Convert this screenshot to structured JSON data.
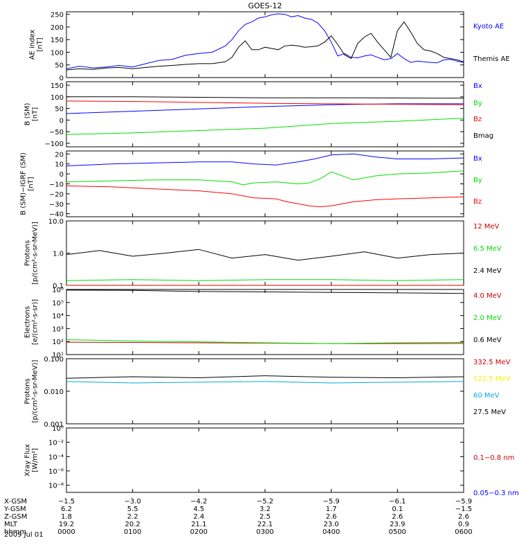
{
  "title": "GOES-12",
  "chart_data": [
    {
      "type": "line",
      "ylabel": "AE index\n[nT]",
      "ylim": [
        0,
        260
      ],
      "yticks": [
        0,
        50,
        100,
        150,
        200,
        250
      ],
      "ytick_labels": [
        "0",
        "50",
        "100",
        "150",
        "200",
        "250"
      ],
      "legend_placement": "right",
      "series": [
        {
          "name": "Kyoto AE",
          "color": "#0000ff",
          "x": [
            0,
            12,
            24,
            36,
            48,
            60,
            72,
            84,
            96,
            108,
            120,
            132,
            144,
            150,
            156,
            162,
            168,
            174,
            180,
            186,
            192,
            198,
            204,
            210,
            216,
            222,
            228,
            234,
            240,
            246,
            252,
            258,
            264,
            270,
            276,
            282,
            288,
            294,
            300,
            306,
            312,
            318,
            324,
            330,
            336,
            342,
            348,
            354,
            360
          ],
          "y": [
            35,
            45,
            38,
            42,
            48,
            42,
            55,
            68,
            72,
            88,
            95,
            100,
            125,
            150,
            185,
            210,
            220,
            235,
            240,
            248,
            252,
            250,
            240,
            245,
            235,
            230,
            215,
            185,
            140,
            85,
            95,
            80,
            78,
            85,
            90,
            80,
            70,
            75,
            95,
            75,
            60,
            65,
            62,
            60,
            58,
            70,
            72,
            65,
            60
          ]
        },
        {
          "name": "Themis AE",
          "color": "#000000",
          "x": [
            0,
            12,
            24,
            36,
            48,
            60,
            72,
            84,
            96,
            108,
            120,
            132,
            144,
            150,
            156,
            162,
            168,
            174,
            180,
            186,
            192,
            198,
            204,
            210,
            216,
            222,
            228,
            234,
            240,
            246,
            252,
            258,
            264,
            270,
            276,
            282,
            288,
            294,
            300,
            306,
            312,
            318,
            324,
            330,
            336,
            342,
            348,
            354,
            360
          ],
          "y": [
            30,
            35,
            32,
            38,
            40,
            35,
            40,
            45,
            48,
            52,
            55,
            55,
            62,
            80,
            120,
            145,
            110,
            110,
            120,
            115,
            110,
            125,
            128,
            125,
            120,
            122,
            125,
            140,
            165,
            130,
            90,
            75,
            135,
            160,
            175,
            140,
            110,
            80,
            185,
            220,
            180,
            135,
            110,
            105,
            95,
            80,
            75,
            70,
            62
          ]
        }
      ]
    },
    {
      "type": "line",
      "ylabel": "B (SM)\n[nT]",
      "ylim": [
        -115,
        165
      ],
      "yticks": [
        -100,
        -50,
        0,
        50,
        100,
        150
      ],
      "ytick_labels": [
        "−100",
        "−50",
        "0",
        "50",
        "100",
        "150"
      ],
      "legend_placement": "right",
      "series": [
        {
          "name": "Bx",
          "color": "#0000ff",
          "x": [
            0,
            60,
            120,
            180,
            240,
            300,
            360
          ],
          "y": [
            28,
            38,
            48,
            58,
            66,
            70,
            70
          ]
        },
        {
          "name": "By",
          "color": "#00dd00",
          "x": [
            0,
            60,
            120,
            180,
            240,
            270,
            300,
            360
          ],
          "y": [
            -62,
            -55,
            -45,
            -35,
            -15,
            -10,
            -5,
            8
          ]
        },
        {
          "name": "Bz",
          "color": "#ff0000",
          "x": [
            0,
            60,
            120,
            180,
            240,
            300,
            360
          ],
          "y": [
            82,
            80,
            76,
            72,
            70,
            68,
            66
          ]
        },
        {
          "name": "Bmag",
          "color": "#000000",
          "x": [
            0,
            60,
            120,
            180,
            240,
            300,
            360
          ],
          "y": [
            100,
            100,
            98,
            96,
            96,
            95,
            94
          ]
        }
      ]
    },
    {
      "type": "line",
      "ylabel": "B (SM)−IGRF (SM)\n[nT]",
      "ylim": [
        -43,
        23
      ],
      "yticks": [
        -40,
        -30,
        -20,
        -10,
        0,
        10,
        20
      ],
      "ytick_labels": [
        "−40",
        "−30",
        "−20",
        "−10",
        "0",
        "10",
        "20"
      ],
      "legend_placement": "right",
      "series": [
        {
          "name": "Bx",
          "color": "#0000ff",
          "x": [
            0,
            40,
            80,
            120,
            150,
            170,
            190,
            210,
            225,
            240,
            260,
            280,
            300,
            330,
            360
          ],
          "y": [
            8,
            10,
            11,
            12,
            12,
            10,
            9,
            12,
            15,
            19,
            20,
            17,
            15,
            15,
            16
          ]
        },
        {
          "name": "By",
          "color": "#00dd00",
          "x": [
            0,
            40,
            80,
            120,
            150,
            160,
            170,
            190,
            210,
            220,
            230,
            240,
            260,
            280,
            300,
            330,
            360
          ],
          "y": [
            -8,
            -7,
            -6,
            -6,
            -8,
            -11,
            -9,
            -8,
            -10,
            -9,
            -5,
            2,
            -6,
            -2,
            0,
            1,
            3
          ]
        },
        {
          "name": "Bz",
          "color": "#ff0000",
          "x": [
            0,
            40,
            80,
            120,
            150,
            170,
            190,
            200,
            210,
            220,
            230,
            240,
            260,
            280,
            300,
            330,
            360
          ],
          "y": [
            -12,
            -13,
            -15,
            -17,
            -20,
            -24,
            -25,
            -28,
            -30,
            -32,
            -33,
            -32,
            -28,
            -26,
            -25,
            -24,
            -23
          ]
        }
      ]
    },
    {
      "type": "line",
      "ylabel": "Protons\n[p/(cm²-s-sr-MeV)]",
      "scale": "log",
      "ylim": [
        0.1,
        10
      ],
      "yticks": [
        0.1,
        1,
        10
      ],
      "ytick_labels": [
        "0.1",
        "1.0",
        "10.0"
      ],
      "legend_placement": "right",
      "series": [
        {
          "name": "12 MeV",
          "color": "#cc0000",
          "x": [
            0,
            60,
            120,
            180,
            240,
            300,
            360
          ],
          "y": [
            0.1,
            0.1,
            0.1,
            0.1,
            0.1,
            0.1,
            0.1
          ]
        },
        {
          "name": "6.5 MeV",
          "color": "#00dd00",
          "x": [
            0,
            60,
            120,
            180,
            240,
            300,
            360
          ],
          "y": [
            0.14,
            0.15,
            0.14,
            0.15,
            0.15,
            0.14,
            0.15
          ]
        },
        {
          "name": "2.4 MeV",
          "color": "#000000",
          "x": [
            0,
            30,
            60,
            90,
            120,
            150,
            180,
            210,
            240,
            270,
            300,
            330,
            360
          ],
          "y": [
            0.9,
            1.2,
            0.8,
            1.0,
            1.3,
            0.7,
            0.9,
            0.6,
            0.8,
            1.1,
            0.7,
            0.9,
            1.0
          ]
        }
      ]
    },
    {
      "type": "line",
      "ylabel": "Electrons\n[e/(cm²-s-sr)]",
      "scale": "log",
      "ylim": [
        10,
        1000000
      ],
      "yticks": [
        10,
        100,
        1000,
        10000,
        100000,
        1000000
      ],
      "ytick_labels": [
        "10¹",
        "10²",
        "10³",
        "10⁴",
        "10⁵",
        "10⁶"
      ],
      "legend_placement": "right",
      "series": [
        {
          "name": "4.0 MeV",
          "color": "#cc0000",
          "x": [
            0,
            60,
            120,
            180,
            240,
            300,
            360
          ],
          "y": [
            90,
            85,
            80,
            75,
            70,
            70,
            72
          ]
        },
        {
          "name": "2.0 MeV",
          "color": "#00dd00",
          "x": [
            0,
            60,
            120,
            180,
            240,
            300,
            360
          ],
          "y": [
            140,
            110,
            95,
            80,
            70,
            80,
            85
          ]
        },
        {
          "name": "0.6 MeV",
          "color": "#000000",
          "x": [
            0,
            60,
            120,
            180,
            240,
            300,
            360
          ],
          "y": [
            900000,
            850000,
            700000,
            650000,
            600000,
            550000,
            500000
          ]
        }
      ]
    },
    {
      "type": "line",
      "ylabel": "Protons\n[p/(cm²-s-sr-MeV)]",
      "scale": "log",
      "ylim": [
        0.001,
        0.1
      ],
      "yticks": [
        0.001,
        0.01,
        0.1
      ],
      "ytick_labels": [
        "0.001",
        "0.010",
        "0.100"
      ],
      "legend_placement": "right",
      "series": [
        {
          "name": "332.5 MeV",
          "color": "#cc0000",
          "x": [],
          "y": []
        },
        {
          "name": "122.5 MeV",
          "color": "#ffee00",
          "x": [],
          "y": []
        },
        {
          "name": "60 MeV",
          "color": "#00aadd",
          "x": [
            0,
            60,
            120,
            180,
            240,
            300,
            360
          ],
          "y": [
            0.02,
            0.018,
            0.019,
            0.02,
            0.018,
            0.019,
            0.02
          ]
        },
        {
          "name": "27.5 MeV",
          "color": "#000000",
          "x": [
            0,
            60,
            120,
            180,
            240,
            300,
            360
          ],
          "y": [
            0.025,
            0.028,
            0.026,
            0.03,
            0.027,
            0.026,
            0.028
          ]
        }
      ]
    },
    {
      "type": "line",
      "ylabel": "Xray Flux\n[W/m²]",
      "scale": "log",
      "ylim": [
        1e-09,
        1
      ],
      "yticks": [
        1e-08,
        1e-06,
        0.0001,
        0.01,
        1
      ],
      "ytick_labels": [
        "10⁻⁸",
        "10⁻⁶",
        "10⁻⁴",
        "10⁻²",
        "10⁰"
      ],
      "legend_placement": "right",
      "series": [
        {
          "name": "0.1−0.8 nm",
          "color": "#cc0000",
          "x": [],
          "y": []
        },
        {
          "name": "0.05−0.3 nm",
          "color": "#0000ff",
          "x": [],
          "y": []
        }
      ]
    }
  ],
  "x_axis": {
    "rows": [
      {
        "label": "X-GSM",
        "values": [
          "−1.5",
          "−3.0",
          "−4.2",
          "−5.2",
          "−5.9",
          "−6.1",
          "−5.9"
        ]
      },
      {
        "label": "Y-GSM",
        "values": [
          "6.2",
          "5.5",
          "4.5",
          "3.2",
          "1.7",
          "0.1",
          "−1.5"
        ]
      },
      {
        "label": "Z-GSM",
        "values": [
          "1.8",
          "2.2",
          "2.4",
          "2.5",
          "2.6",
          "2.6",
          "2.6"
        ]
      },
      {
        "label": "MLT",
        "values": [
          "19.2",
          "20.2",
          "21.1",
          "22.1",
          "23.0",
          "23.9",
          "0.9"
        ]
      },
      {
        "label": "hhmm",
        "values": [
          "0000",
          "0100",
          "0200",
          "0300",
          "0400",
          "0500",
          "0600"
        ]
      }
    ],
    "date": "2009 Jul 01"
  }
}
